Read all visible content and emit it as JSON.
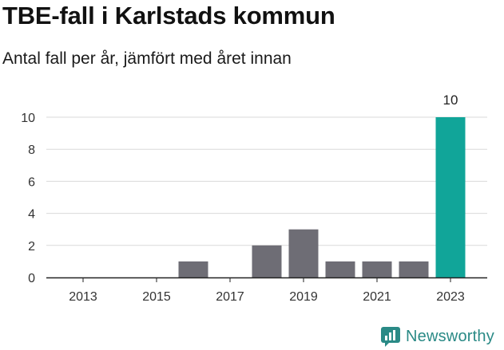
{
  "header": {
    "title": "TBE-fall i Karlstads kommun",
    "subtitle": "Antal fall per år, jämfört med året innan"
  },
  "brand": {
    "name": "Newsworthy"
  },
  "colors": {
    "bar": "#6e6d75",
    "highlight": "#11a599",
    "grid": "#d9d9d9",
    "axis": "#222222",
    "brand": "#2a8a86"
  },
  "chart_data": {
    "type": "bar",
    "categories": [
      "2013",
      "2014",
      "2015",
      "2016",
      "2017",
      "2018",
      "2019",
      "2020",
      "2021",
      "2022",
      "2023"
    ],
    "values": [
      0,
      0,
      0,
      1,
      0,
      2,
      3,
      1,
      1,
      1,
      10
    ],
    "highlight_index": 10,
    "data_labels": [
      {
        "index": 10,
        "text": "10"
      }
    ],
    "x_tick_labels": [
      "2013",
      "2015",
      "2017",
      "2019",
      "2021",
      "2023"
    ],
    "y_ticks": [
      0,
      2,
      4,
      6,
      8,
      10
    ],
    "ylim": [
      0,
      10
    ],
    "grid": true,
    "xlabel": "",
    "ylabel": ""
  }
}
